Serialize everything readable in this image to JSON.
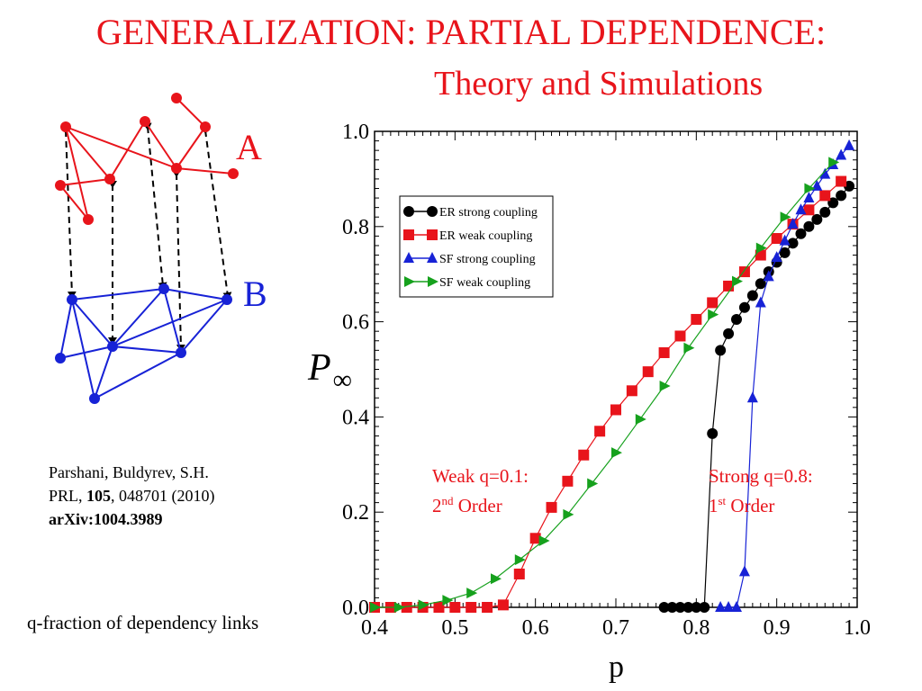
{
  "slide": {
    "title_line1": "GENERALIZATION: PARTIAL DEPENDENCE:",
    "title_line2": "Theory and Simulations",
    "title_color": "#e8141b",
    "caption": "q-fraction of dependency links",
    "citation": {
      "authors": "Parshani, Buldyrev, S.H.",
      "journal": "PRL, ",
      "volume": "105",
      "pages": ", 048701 (2010)",
      "arxiv": "arXiv:1004.3989"
    }
  },
  "network": {
    "label_a": "A",
    "label_b": "B",
    "color_a": "#e8141b",
    "color_b": "#1722d6"
  },
  "chart_data": {
    "type": "line",
    "title": "",
    "xlabel": "p",
    "ylabel": "P",
    "ylabel_sub": "∞",
    "xlim": [
      0.4,
      1.0
    ],
    "ylim": [
      0.0,
      1.0
    ],
    "xticks": [
      0.4,
      0.5,
      0.6,
      0.7,
      0.8,
      0.9,
      1.0
    ],
    "xtick_labels": [
      "0.4",
      "0.5",
      "0.6",
      "0.7",
      "0.8",
      "0.9",
      "1.0"
    ],
    "yticks": [
      0.0,
      0.2,
      0.4,
      0.6,
      0.8,
      1.0
    ],
    "ytick_labels": [
      "0.0",
      "0.2",
      "0.4",
      "0.6",
      "0.8",
      "1.0"
    ],
    "grid": false,
    "legend_position": "upper-left",
    "series": [
      {
        "name": "ER strong coupling",
        "color": "#000000",
        "marker": "circle",
        "x": [
          0.76,
          0.77,
          0.78,
          0.79,
          0.8,
          0.81,
          0.82,
          0.83,
          0.84,
          0.85,
          0.86,
          0.87,
          0.88,
          0.89,
          0.9,
          0.91,
          0.92,
          0.93,
          0.94,
          0.95,
          0.96,
          0.97,
          0.98,
          0.99
        ],
        "y": [
          0.0,
          0.0,
          0.0,
          0.0,
          0.0,
          0.0,
          0.365,
          0.54,
          0.575,
          0.605,
          0.63,
          0.655,
          0.68,
          0.705,
          0.725,
          0.745,
          0.765,
          0.785,
          0.8,
          0.815,
          0.83,
          0.85,
          0.865,
          0.885
        ]
      },
      {
        "name": "ER weak coupling",
        "color": "#e8141b",
        "marker": "square",
        "x": [
          0.4,
          0.42,
          0.44,
          0.46,
          0.48,
          0.5,
          0.52,
          0.54,
          0.56,
          0.58,
          0.6,
          0.62,
          0.64,
          0.66,
          0.68,
          0.7,
          0.72,
          0.74,
          0.76,
          0.78,
          0.8,
          0.82,
          0.84,
          0.86,
          0.88,
          0.9,
          0.92,
          0.94,
          0.96,
          0.98
        ],
        "y": [
          0.0,
          0.0,
          0.0,
          0.0,
          0.0,
          0.0,
          0.0,
          0.0,
          0.005,
          0.07,
          0.145,
          0.21,
          0.265,
          0.32,
          0.37,
          0.415,
          0.455,
          0.495,
          0.535,
          0.57,
          0.605,
          0.64,
          0.675,
          0.705,
          0.74,
          0.775,
          0.805,
          0.835,
          0.865,
          0.895
        ]
      },
      {
        "name": "SF strong coupling",
        "color": "#1722d6",
        "marker": "triangle-up",
        "x": [
          0.83,
          0.84,
          0.85,
          0.86,
          0.87,
          0.88,
          0.89,
          0.9,
          0.91,
          0.92,
          0.93,
          0.94,
          0.95,
          0.96,
          0.97,
          0.98,
          0.99
        ],
        "y": [
          0.0,
          0.0,
          0.0,
          0.075,
          0.44,
          0.64,
          0.695,
          0.735,
          0.77,
          0.805,
          0.835,
          0.86,
          0.885,
          0.91,
          0.93,
          0.95,
          0.97
        ]
      },
      {
        "name": "SF weak coupling",
        "color": "#16a11d",
        "marker": "triangle-right",
        "x": [
          0.4,
          0.43,
          0.46,
          0.49,
          0.52,
          0.55,
          0.58,
          0.61,
          0.64,
          0.67,
          0.7,
          0.73,
          0.76,
          0.79,
          0.82,
          0.85,
          0.88,
          0.91,
          0.94,
          0.97
        ],
        "y": [
          0.0,
          0.0,
          0.005,
          0.015,
          0.03,
          0.06,
          0.1,
          0.14,
          0.195,
          0.26,
          0.325,
          0.395,
          0.465,
          0.545,
          0.615,
          0.685,
          0.755,
          0.82,
          0.88,
          0.935
        ]
      }
    ],
    "annotations": [
      {
        "line1": "Weak q=0.1:",
        "line2_num": "2",
        "line2_sup": "nd",
        "line2_text": " Order",
        "color": "#e8141b"
      },
      {
        "line1": "Strong q=0.8:",
        "line2_num": "1",
        "line2_sup": "st",
        "line2_text": " Order",
        "color": "#e8141b"
      }
    ]
  }
}
